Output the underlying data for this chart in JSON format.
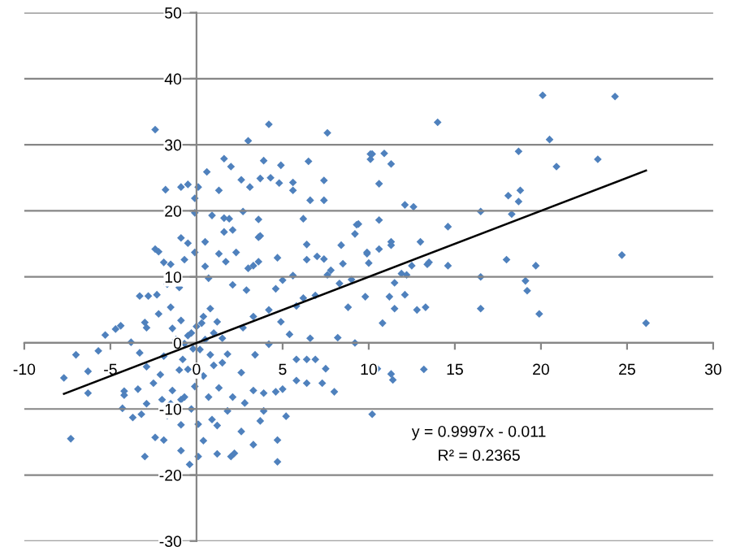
{
  "chart_data": {
    "type": "scatter",
    "xlim": [
      -10,
      30
    ],
    "ylim": [
      -30,
      50
    ],
    "xticks": [
      -10,
      -5,
      0,
      5,
      10,
      15,
      20,
      25,
      30
    ],
    "yticks": [
      -30,
      -20,
      -10,
      0,
      10,
      20,
      30,
      40,
      50
    ],
    "grid": "y",
    "legend": false,
    "annotations": [
      "y = 0.9997x - 0.011",
      "R² = 0.2365"
    ],
    "series": [
      {
        "marker": "diamond",
        "color": "#4f81bd",
        "x": [
          -2.4,
          4.2,
          3.0,
          7.6,
          -1.8,
          -0.9,
          -0.5,
          0.1,
          0.6,
          1.6,
          2.0,
          2.6,
          3.1,
          3.7,
          3.9,
          4.3,
          4.9,
          4.8,
          5.6,
          5.6,
          6.5,
          7.4,
          7.4,
          6.6,
          6.2,
          -0.1,
          -0.1,
          1.3,
          0.9,
          1.6,
          1.9,
          1.6,
          2.1,
          2.7,
          3.6,
          3.6,
          3.7,
          -0.9,
          -0.5,
          -2.4,
          -2.2,
          0.5,
          -0.1,
          1.3,
          2.3,
          3.3,
          3.6,
          4.7,
          6.4,
          6.4,
          7.0,
          7.4,
          8.4,
          9.2,
          9.4,
          9.9,
          10.1,
          10.1,
          -1.9,
          -1.5,
          -0.7,
          0.5,
          1.7,
          3.0,
          20.1,
          24.3,
          14.0,
          20.5,
          18.7,
          23.3,
          20.9,
          10.2,
          10.9,
          11.3,
          10.6,
          18.1,
          18.8,
          18.7,
          18.3,
          16.5,
          12.1,
          12.6,
          9.3,
          10.6,
          14.6,
          11.3,
          11.3,
          13.0,
          10.6,
          9.9,
          10.0,
          12.5,
          13.4,
          13.5,
          14.6,
          18.0,
          19.7,
          24.7,
          12.2,
          16.5,
          9.8,
          11.2,
          11.5,
          11.9,
          12.1,
          11.5,
          10.8,
          12.8,
          13.3,
          16.5,
          19.1,
          19.2,
          19.9,
          26.1,
          10.5,
          11.3,
          11.4,
          13.2,
          10.2,
          -7.3,
          -7.7,
          -7.0,
          -6.3,
          -6.3,
          -5.7,
          -5.3,
          -4.7,
          -4.4,
          -4.2,
          -4.3,
          -3.0,
          -2.4,
          -1.9,
          -0.9,
          -0.4,
          0.1,
          1.2,
          2.0,
          2.2,
          4.7,
          4.7,
          5.2,
          3.9,
          3.7,
          3.3,
          2.6,
          0.4,
          0.9,
          -0.9,
          -1.7,
          -1.5,
          -2.9,
          -3.2,
          -3.7,
          -3.3,
          -2.8,
          -2.3,
          -1.7,
          -1.0,
          -1.5,
          -2.2,
          -3.0,
          -3.8,
          -3.3,
          -2.9,
          -2.5,
          -2.1,
          -1.9,
          -1.4,
          -0.9,
          -0.5,
          -0.7,
          -0.2,
          0.0,
          0.4,
          0.8,
          1.2,
          1.5,
          1.8,
          1.0,
          0.4,
          -0.1,
          -0.7,
          -1.0,
          -1.4,
          0.7,
          1.3,
          2.1,
          2.6,
          3.3,
          3.9,
          4.6,
          5.0,
          5.8,
          6.4,
          7.3,
          8.0,
          6.9,
          7.5,
          6.4,
          5.8,
          4.2,
          3.4,
          2.7,
          3.3,
          4.2,
          4.9,
          5.8,
          6.2,
          6.9,
          7.6,
          8.3,
          8.8,
          8.2,
          9.2,
          6.6,
          5.4,
          4.6,
          5.6,
          2.9,
          2.1,
          0.7,
          -2.9,
          -0.9,
          -2.0,
          -0.3,
          0.1,
          1.2,
          1.8,
          2.8,
          -3.4,
          -4.2,
          -0.3,
          0.2,
          0.5,
          -0.8,
          0.8,
          1.0,
          -1.2,
          0.3,
          -0.5,
          1.5,
          7.8,
          8.5,
          5.0,
          9.0
        ],
        "values": [
          32.3,
          33.1,
          30.6,
          31.8,
          23.2,
          23.6,
          24.0,
          23.6,
          25.9,
          27.9,
          26.7,
          24.7,
          23.6,
          24.9,
          27.6,
          25.0,
          26.9,
          24.2,
          24.3,
          23.1,
          27.5,
          24.6,
          21.6,
          21.6,
          18.8,
          21.9,
          19.7,
          23.1,
          19.3,
          18.9,
          18.8,
          16.8,
          17.1,
          19.9,
          18.7,
          16.0,
          16.2,
          15.9,
          15.1,
          14.2,
          13.8,
          15.3,
          13.7,
          13.5,
          13.7,
          11.7,
          12.3,
          12.9,
          14.9,
          12.6,
          13.1,
          12.7,
          14.8,
          16.5,
          18.0,
          13.7,
          28.6,
          27.8,
          12.2,
          11.9,
          12.6,
          11.6,
          12.3,
          11.3,
          37.5,
          37.3,
          33.4,
          30.8,
          29.0,
          27.8,
          26.7,
          28.6,
          28.7,
          27.1,
          24.1,
          22.3,
          23.1,
          21.4,
          19.5,
          19.9,
          20.9,
          20.6,
          17.9,
          18.6,
          17.6,
          15.3,
          14.8,
          15.3,
          14.2,
          13.5,
          12.1,
          11.7,
          11.9,
          12.2,
          11.7,
          12.6,
          11.7,
          13.3,
          10.3,
          10.0,
          7.0,
          7.0,
          9.1,
          10.5,
          7.3,
          5.2,
          3.0,
          5.0,
          5.4,
          5.2,
          9.4,
          7.9,
          4.4,
          3.0,
          -3.9,
          -4.7,
          -5.6,
          -4.0,
          -10.8,
          -14.5,
          -5.3,
          -1.8,
          -4.3,
          -7.6,
          -1.2,
          1.2,
          2.1,
          2.6,
          -7.3,
          -9.9,
          -17.2,
          -14.3,
          -14.7,
          -16.3,
          -18.4,
          -17.2,
          -16.8,
          -17.2,
          -16.7,
          -18.0,
          -14.7,
          -11.1,
          -10.3,
          -11.8,
          -15.4,
          -13.4,
          -14.8,
          -11.6,
          -12.4,
          -11.0,
          -9.2,
          -9.2,
          -10.8,
          -11.3,
          7.1,
          7.1,
          7.3,
          8.9,
          8.4,
          5.4,
          4.4,
          3.1,
          0.1,
          -1.5,
          -3.6,
          -6.1,
          -4.8,
          -2.0,
          2.2,
          3.4,
          1.1,
          -0.1,
          -0.9,
          2.5,
          4.0,
          5.2,
          3.2,
          0.7,
          -1.7,
          -3.4,
          -5.0,
          -6.6,
          -8.2,
          -4.1,
          -7.2,
          -8.2,
          -6.8,
          -8.2,
          -4.5,
          -7.2,
          -7.6,
          -7.4,
          -7.0,
          -5.7,
          -6.1,
          -6.1,
          -7.4,
          -2.5,
          -3.9,
          -2.5,
          -2.5,
          -0.2,
          -1.8,
          2.3,
          4.0,
          5.0,
          3.2,
          5.6,
          6.8,
          7.2,
          10.3,
          9.0,
          5.4,
          0.8,
          0.0,
          0.7,
          1.3,
          8.2,
          10.2,
          8.0,
          8.8,
          9.8,
          2.3,
          -8.6,
          -8.6,
          -10.0,
          -12.3,
          -12.5,
          -10.3,
          -9.1,
          -7.0,
          -7.9,
          1.5,
          -1.0,
          0.5,
          -2.5,
          -1.8,
          1.5,
          0.5,
          3.0,
          -4.0,
          -3.0,
          11.0,
          12.0,
          9.5,
          9.6
        ]
      },
      {
        "type": "line",
        "color": "#000000",
        "x": [
          -7.7,
          26.1
        ],
        "values": [
          -7.7,
          26.1
        ]
      }
    ]
  }
}
